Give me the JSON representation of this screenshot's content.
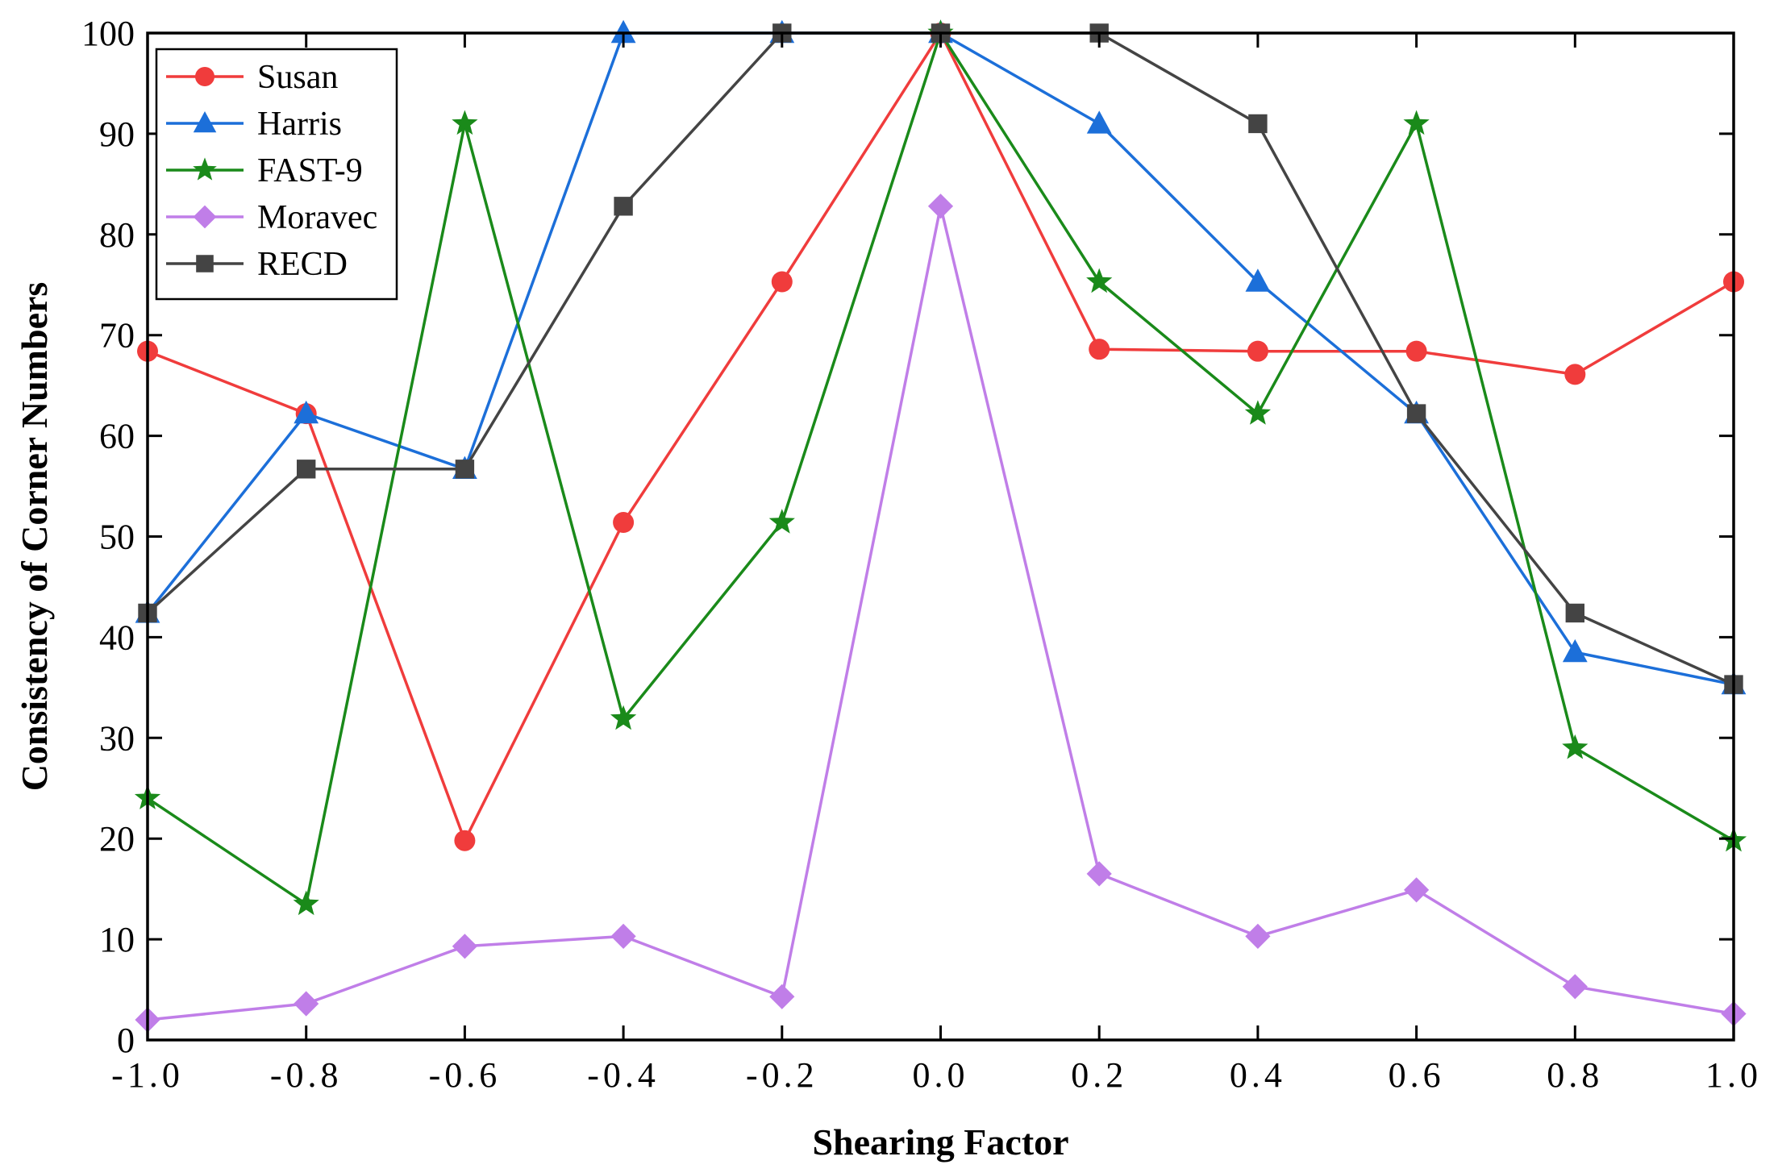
{
  "chart_data": {
    "type": "line",
    "title": "",
    "xlabel": "Shearing Factor",
    "ylabel": "Consistency of Corner Numbers",
    "x": [
      -1.0,
      -0.8,
      -0.6,
      -0.4,
      -0.2,
      0.0,
      0.2,
      0.4,
      0.6,
      0.8,
      1.0
    ],
    "xlim": [
      -1.0,
      1.0
    ],
    "ylim": [
      0,
      100
    ],
    "xticks": [
      -1.0,
      -0.8,
      -0.6,
      -0.4,
      -0.2,
      0.0,
      0.2,
      0.4,
      0.6,
      0.8,
      1.0
    ],
    "xtick_labels": [
      "-1.0",
      "-0.8",
      "-0.6",
      "-0.4",
      "-0.2",
      "0.0",
      "0.2",
      "0.4",
      "0.6",
      "0.8",
      "1.0"
    ],
    "yticks": [
      0,
      10,
      20,
      30,
      40,
      50,
      60,
      70,
      80,
      90,
      100
    ],
    "ytick_labels": [
      "0",
      "10",
      "20",
      "30",
      "40",
      "50",
      "60",
      "70",
      "80",
      "90",
      "100"
    ],
    "grid": false,
    "legend_position": "top-left",
    "series": [
      {
        "name": "Susan",
        "color": "#f03c3c",
        "marker": "circle",
        "values": [
          68.4,
          62.2,
          19.8,
          51.4,
          75.3,
          100,
          68.6,
          68.4,
          68.4,
          66.1,
          75.3
        ]
      },
      {
        "name": "Harris",
        "color": "#1c6fd9",
        "marker": "triangle",
        "values": [
          42.4,
          62.2,
          56.7,
          100,
          100,
          100,
          91.0,
          75.3,
          62.2,
          38.5,
          35.3
        ]
      },
      {
        "name": "FAST-9",
        "color": "#1a8a1a",
        "marker": "star",
        "values": [
          24.0,
          13.5,
          91.0,
          31.9,
          51.4,
          100,
          75.3,
          62.2,
          91.0,
          29.0,
          19.8
        ]
      },
      {
        "name": "Moravec",
        "color": "#c07ee8",
        "marker": "diamond",
        "values": [
          2.0,
          3.6,
          9.3,
          10.3,
          4.3,
          82.8,
          16.5,
          10.3,
          14.9,
          5.3,
          2.6
        ]
      },
      {
        "name": "RECD",
        "color": "#444444",
        "marker": "square",
        "values": [
          42.4,
          56.7,
          56.7,
          82.8,
          100,
          100,
          100,
          91.0,
          62.2,
          42.4,
          35.3
        ]
      }
    ]
  }
}
